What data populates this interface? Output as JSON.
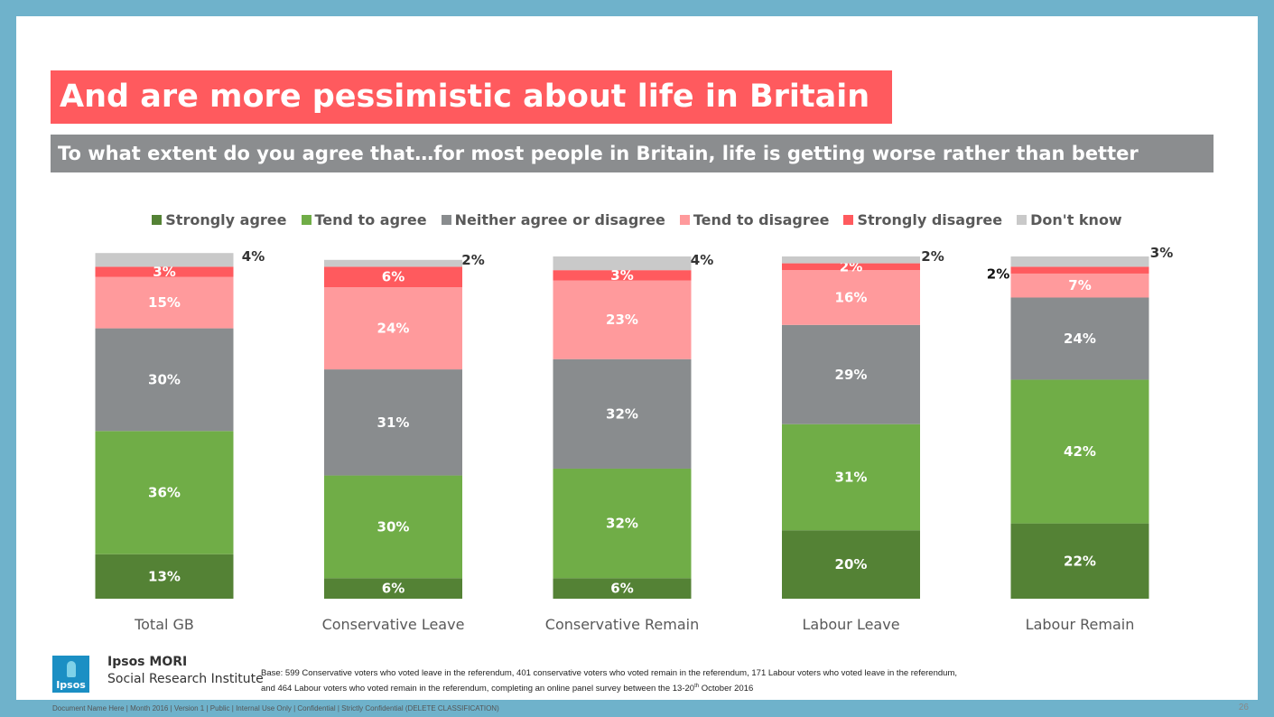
{
  "title": "And are more pessimistic about life in Britain",
  "subtitle": "To what extent do you agree that…for most people in Britain, life is getting worse rather than better",
  "brand": {
    "name": "Ipsos MORI",
    "sub": "Social Research Institute",
    "logo_text": "Ipsos"
  },
  "base_note": {
    "line1": "Base: 599 Conservative voters who voted leave in the referendum, 401 conservative voters who voted remain in the referendum, 171 Labour voters who voted leave in the referendum,",
    "line2_pre": "and 464 Labour voters who voted remain in the referendum, completing an online panel survey between the 13-20",
    "line2_sup": "th",
    "line2_post": " October 2016"
  },
  "footer": "Document Name Here | Month 2016 | Version 1 | Public | Internal Use Only | Confidential | Strictly Confidential (DELETE CLASSIFICATION)",
  "page_number": "26",
  "colors": {
    "strongly_agree": "#548235",
    "tend_agree": "#70AD47",
    "neither": "#898C8E",
    "tend_disagree": "#FF9A9C",
    "strongly_disagree": "#FF5A5E",
    "dont_know": "#C9C9C9",
    "title_bg": "#FF5A5E",
    "subtitle_bg": "#8B8D8F",
    "frame": "#6FB2CB"
  },
  "chart_data": {
    "type": "bar",
    "stacked": true,
    "ylim": [
      0,
      100
    ],
    "categories": [
      "Total GB",
      "Conservative Leave",
      "Conservative Remain",
      "Labour Leave",
      "Labour Remain"
    ],
    "series": [
      {
        "name": "Strongly agree",
        "color_key": "strongly_agree",
        "values": [
          13,
          6,
          6,
          20,
          22
        ]
      },
      {
        "name": "Tend to agree",
        "color_key": "tend_agree",
        "values": [
          36,
          30,
          32,
          31,
          42
        ]
      },
      {
        "name": "Neither agree or disagree",
        "color_key": "neither",
        "values": [
          30,
          31,
          32,
          29,
          24
        ]
      },
      {
        "name": "Tend to disagree",
        "color_key": "tend_disagree",
        "values": [
          15,
          24,
          23,
          16,
          7
        ]
      },
      {
        "name": "Strongly disagree",
        "color_key": "strongly_disagree",
        "values": [
          3,
          6,
          3,
          2,
          2
        ]
      },
      {
        "name": "Don't know",
        "color_key": "dont_know",
        "values": [
          4,
          2,
          4,
          2,
          3
        ]
      }
    ],
    "legend_position": "top"
  }
}
